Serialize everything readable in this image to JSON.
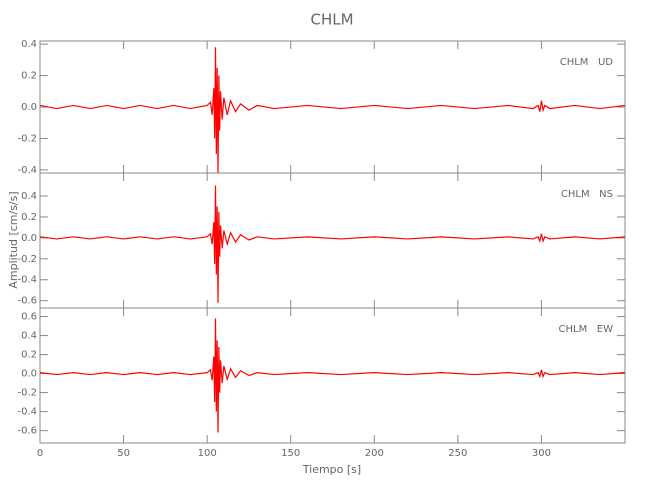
{
  "chart_data": [
    {
      "type": "line",
      "title": "CHLM",
      "label": "CHLM   UD",
      "x": [
        0,
        10,
        20,
        30,
        40,
        50,
        60,
        70,
        80,
        90,
        100,
        102,
        103,
        104,
        104.5,
        105,
        105.5,
        106,
        106.5,
        107,
        107.5,
        108,
        109,
        110,
        112,
        114,
        117,
        120,
        125,
        130,
        140,
        160,
        180,
        200,
        220,
        240,
        260,
        280,
        295,
        298,
        299,
        300,
        301,
        302,
        305,
        320,
        335,
        350
      ],
      "series": [
        {
          "color": "#ff0000",
          "values": [
            0.01,
            -0.01,
            0.01,
            -0.01,
            0.01,
            -0.01,
            0.01,
            -0.01,
            0.01,
            -0.01,
            0.01,
            0.03,
            -0.05,
            0.12,
            -0.2,
            0.38,
            -0.3,
            0.25,
            -0.42,
            0.2,
            -0.15,
            0.1,
            -0.08,
            0.06,
            -0.05,
            0.04,
            -0.03,
            0.02,
            -0.02,
            0.01,
            -0.01,
            0.01,
            -0.01,
            0.01,
            -0.01,
            0.01,
            -0.01,
            0.01,
            -0.01,
            0.01,
            -0.03,
            0.04,
            -0.02,
            0.01,
            -0.01,
            0.01,
            -0.01,
            0.01
          ]
        }
      ],
      "xlim": [
        0,
        350
      ],
      "ylim": [
        -0.42,
        0.42
      ],
      "yticks": [
        -0.4,
        -0.2,
        {
          "value": 0,
          "label": "0.0"
        },
        0.2,
        0.4
      ]
    },
    {
      "type": "line",
      "label": "CHLM   NS",
      "ylabel": "Amplitud [cm/s/s]",
      "x": [
        0,
        10,
        20,
        30,
        40,
        50,
        60,
        70,
        80,
        90,
        100,
        102,
        103,
        104,
        104.5,
        105,
        105.5,
        106,
        106.5,
        107,
        107.5,
        108,
        109,
        110,
        112,
        114,
        117,
        120,
        125,
        130,
        140,
        160,
        180,
        200,
        220,
        240,
        260,
        280,
        295,
        298,
        299,
        300,
        301,
        302,
        305,
        320,
        335,
        350
      ],
      "series": [
        {
          "color": "#ff0000",
          "values": [
            0.01,
            -0.01,
            0.01,
            -0.01,
            0.01,
            -0.01,
            0.01,
            -0.01,
            0.01,
            -0.01,
            0.01,
            0.04,
            -0.06,
            0.15,
            -0.25,
            0.5,
            -0.35,
            0.3,
            -0.62,
            0.25,
            -0.18,
            0.12,
            -0.1,
            0.07,
            -0.06,
            0.05,
            -0.04,
            0.03,
            -0.02,
            0.01,
            -0.01,
            0.01,
            -0.01,
            0.01,
            -0.01,
            0.01,
            -0.01,
            0.01,
            -0.01,
            0.01,
            -0.03,
            0.04,
            -0.03,
            0.01,
            -0.01,
            0.01,
            -0.01,
            0.01
          ]
        }
      ],
      "xlim": [
        0,
        350
      ],
      "ylim": [
        -0.67,
        0.62
      ],
      "yticks": [
        -0.6,
        -0.4,
        -0.2,
        {
          "value": 0,
          "label": "0.0"
        },
        0.2,
        0.4
      ]
    },
    {
      "type": "line",
      "label": "CHLM   EW",
      "xlabel": "Tiempo [s]",
      "x": [
        0,
        10,
        20,
        30,
        40,
        50,
        60,
        70,
        80,
        90,
        100,
        102,
        103,
        104,
        104.5,
        105,
        105.5,
        106,
        106.5,
        107,
        107.5,
        108,
        109,
        110,
        112,
        114,
        117,
        120,
        125,
        130,
        140,
        160,
        180,
        200,
        220,
        240,
        260,
        280,
        295,
        298,
        299,
        300,
        301,
        302,
        305,
        320,
        335,
        350
      ],
      "series": [
        {
          "color": "#ff0000",
          "values": [
            0.01,
            -0.01,
            0.01,
            -0.01,
            0.01,
            -0.01,
            0.01,
            -0.01,
            0.01,
            -0.01,
            0.01,
            0.04,
            -0.07,
            0.18,
            -0.3,
            0.58,
            -0.4,
            0.35,
            -0.62,
            0.28,
            -0.2,
            0.14,
            -0.1,
            0.08,
            -0.06,
            0.05,
            -0.04,
            0.03,
            -0.02,
            0.01,
            -0.01,
            0.01,
            -0.01,
            0.01,
            -0.01,
            0.01,
            -0.01,
            0.01,
            -0.01,
            0.01,
            -0.03,
            0.04,
            -0.03,
            0.01,
            -0.01,
            0.01,
            -0.01,
            0.01
          ]
        }
      ],
      "xlim": [
        0,
        350
      ],
      "ylim": [
        -0.73,
        0.69
      ],
      "yticks": [
        -0.6,
        -0.4,
        -0.2,
        {
          "value": 0,
          "label": "0.0"
        },
        0.2,
        0.4,
        0.6
      ],
      "xticks": [
        0,
        50,
        100,
        150,
        200,
        250,
        300
      ]
    }
  ]
}
